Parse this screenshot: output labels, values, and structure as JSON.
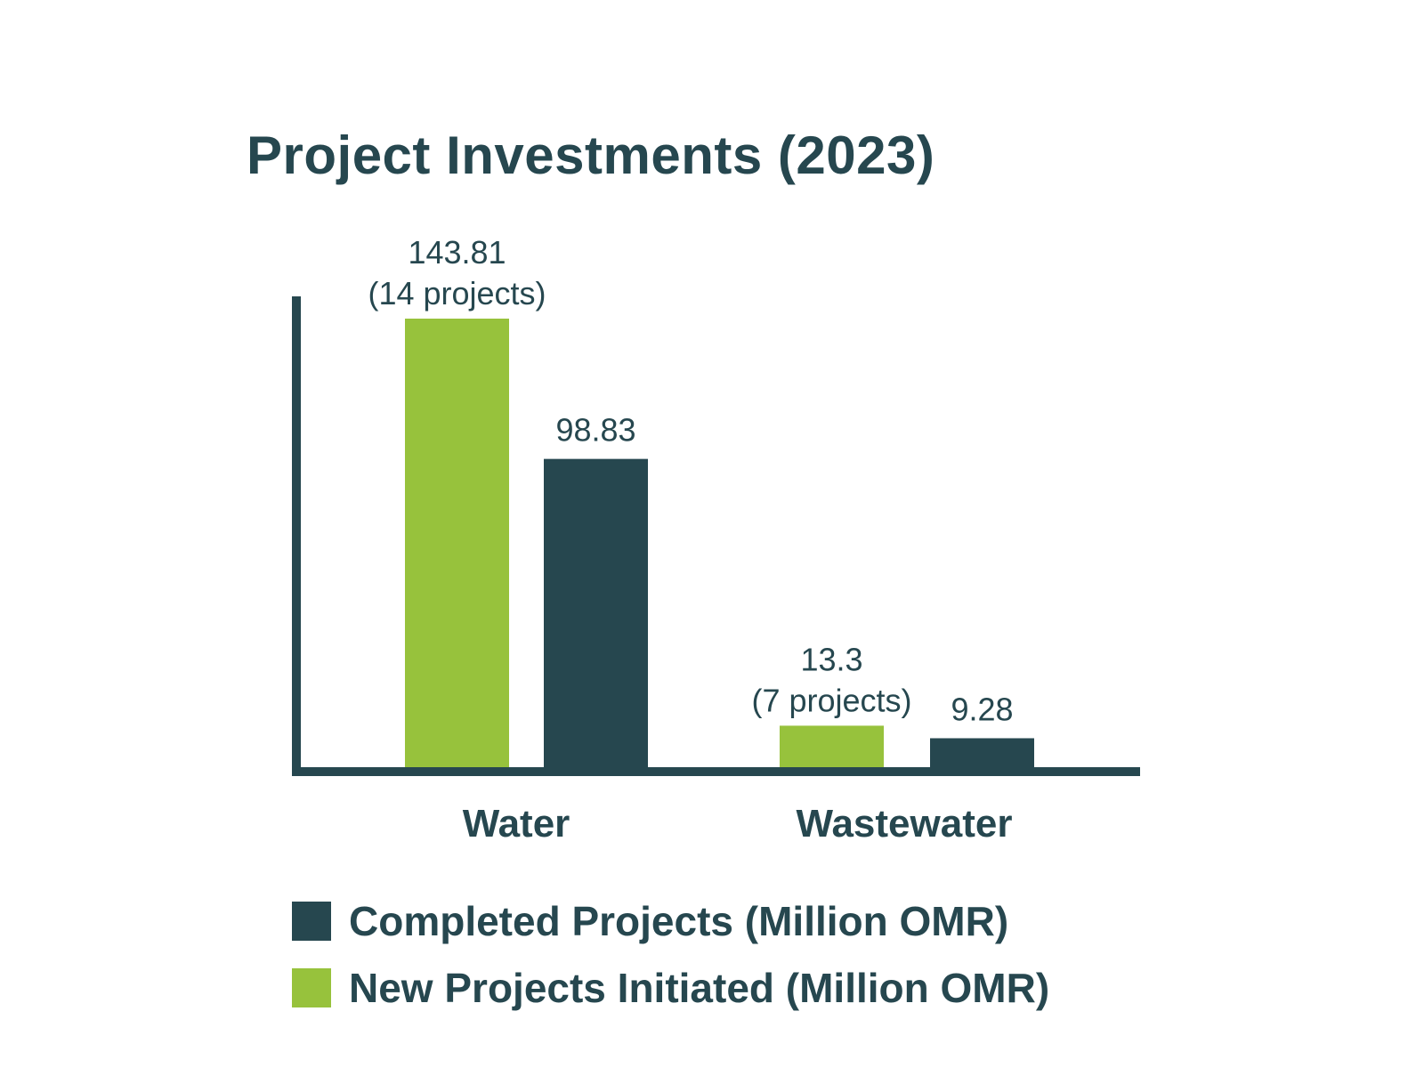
{
  "chart_data": {
    "type": "bar",
    "title": "Project Investments (2023)",
    "categories": [
      "Water",
      "Wastewater"
    ],
    "series": [
      {
        "name": "New Projects Initiated (Million OMR)",
        "color": "#97c23c",
        "values": [
          143.81,
          13.3
        ],
        "labels": [
          "143.81",
          "13.3"
        ],
        "sublabels": [
          "(14 projects)",
          "(7 projects)"
        ]
      },
      {
        "name": "Completed Projects (Million OMR)",
        "color": "#26474f",
        "values": [
          98.83,
          9.28
        ],
        "labels": [
          "98.83",
          "9.28"
        ],
        "sublabels": [
          "",
          ""
        ]
      }
    ],
    "legend": [
      {
        "label": "Completed Projects (Million OMR)",
        "color": "#26474f"
      },
      {
        "label": "New Projects Initiated (Million OMR)",
        "color": "#97c23c"
      }
    ],
    "legend_placement": "bottom-left",
    "xlabel": "",
    "ylabel": "",
    "ylim": [
      0,
      150
    ],
    "grid": false
  }
}
